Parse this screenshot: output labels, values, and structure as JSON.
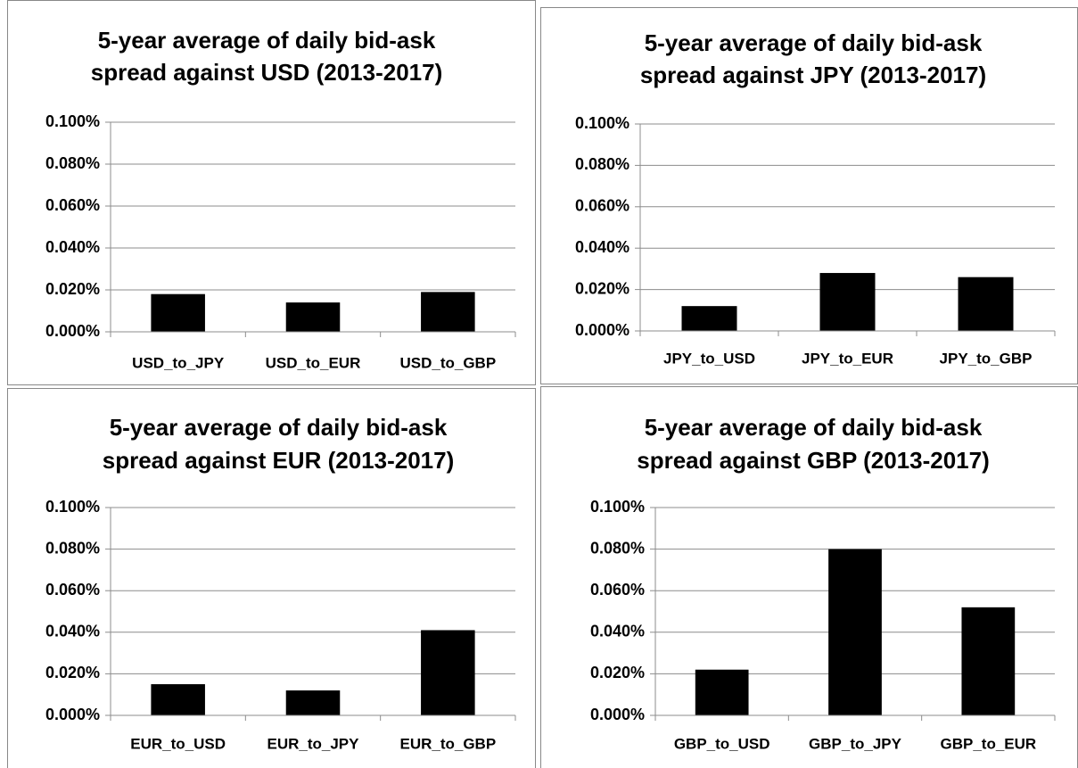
{
  "chart_data": [
    {
      "type": "bar",
      "title": [
        "5-year average of daily bid-ask",
        "spread against USD (2013-2017)"
      ],
      "categories": [
        "USD_to_JPY",
        "USD_to_EUR",
        "USD_to_GBP"
      ],
      "values": [
        0.018,
        0.014,
        0.019
      ],
      "color": "#000000",
      "ylim": [
        0,
        0.1
      ],
      "yticks": [
        {
          "value": 0,
          "label": "0.000%"
        },
        {
          "value": 0.02,
          "label": "0.020%"
        },
        {
          "value": 0.04,
          "label": "0.040%"
        },
        {
          "value": 0.06,
          "label": "0.060%"
        },
        {
          "value": 0.08,
          "label": "0.080%"
        },
        {
          "value": 0.1,
          "label": "0.100%"
        }
      ],
      "grid": true
    },
    {
      "type": "bar",
      "title": [
        "5-year average of daily bid-ask",
        "spread against JPY (2013-2017)"
      ],
      "categories": [
        "JPY_to_USD",
        "JPY_to_EUR",
        "JPY_to_GBP"
      ],
      "values": [
        0.012,
        0.028,
        0.026
      ],
      "color": "#000000",
      "ylim": [
        0,
        0.1
      ],
      "yticks": [
        {
          "value": 0,
          "label": "0.000%"
        },
        {
          "value": 0.02,
          "label": "0.020%"
        },
        {
          "value": 0.04,
          "label": "0.040%"
        },
        {
          "value": 0.06,
          "label": "0.060%"
        },
        {
          "value": 0.08,
          "label": "0.080%"
        },
        {
          "value": 0.1,
          "label": "0.100%"
        }
      ],
      "grid": true
    },
    {
      "type": "bar",
      "title": [
        "5-year average of daily bid-ask",
        "spread against EUR (2013-2017)"
      ],
      "categories": [
        "EUR_to_USD",
        "EUR_to_JPY",
        "EUR_to_GBP"
      ],
      "values": [
        0.015,
        0.012,
        0.041
      ],
      "color": "#000000",
      "ylim": [
        0,
        0.1
      ],
      "yticks": [
        {
          "value": 0,
          "label": "0.000%"
        },
        {
          "value": 0.02,
          "label": "0.020%"
        },
        {
          "value": 0.04,
          "label": "0.040%"
        },
        {
          "value": 0.06,
          "label": "0.060%"
        },
        {
          "value": 0.08,
          "label": "0.080%"
        },
        {
          "value": 0.1,
          "label": "0.100%"
        }
      ],
      "grid": true
    },
    {
      "type": "bar",
      "title": [
        "5-year average of daily bid-ask",
        "spread against GBP (2013-2017)"
      ],
      "categories": [
        "GBP_to_USD",
        "GBP_to_JPY",
        "GBP_to_EUR"
      ],
      "values": [
        0.022,
        0.08,
        0.052
      ],
      "color": "#000000",
      "ylim": [
        0,
        0.1
      ],
      "yticks": [
        {
          "value": 0,
          "label": "0.000%"
        },
        {
          "value": 0.02,
          "label": "0.020%"
        },
        {
          "value": 0.04,
          "label": "0.040%"
        },
        {
          "value": 0.06,
          "label": "0.060%"
        },
        {
          "value": 0.08,
          "label": "0.080%"
        },
        {
          "value": 0.1,
          "label": "0.100%"
        }
      ],
      "grid": true
    }
  ]
}
